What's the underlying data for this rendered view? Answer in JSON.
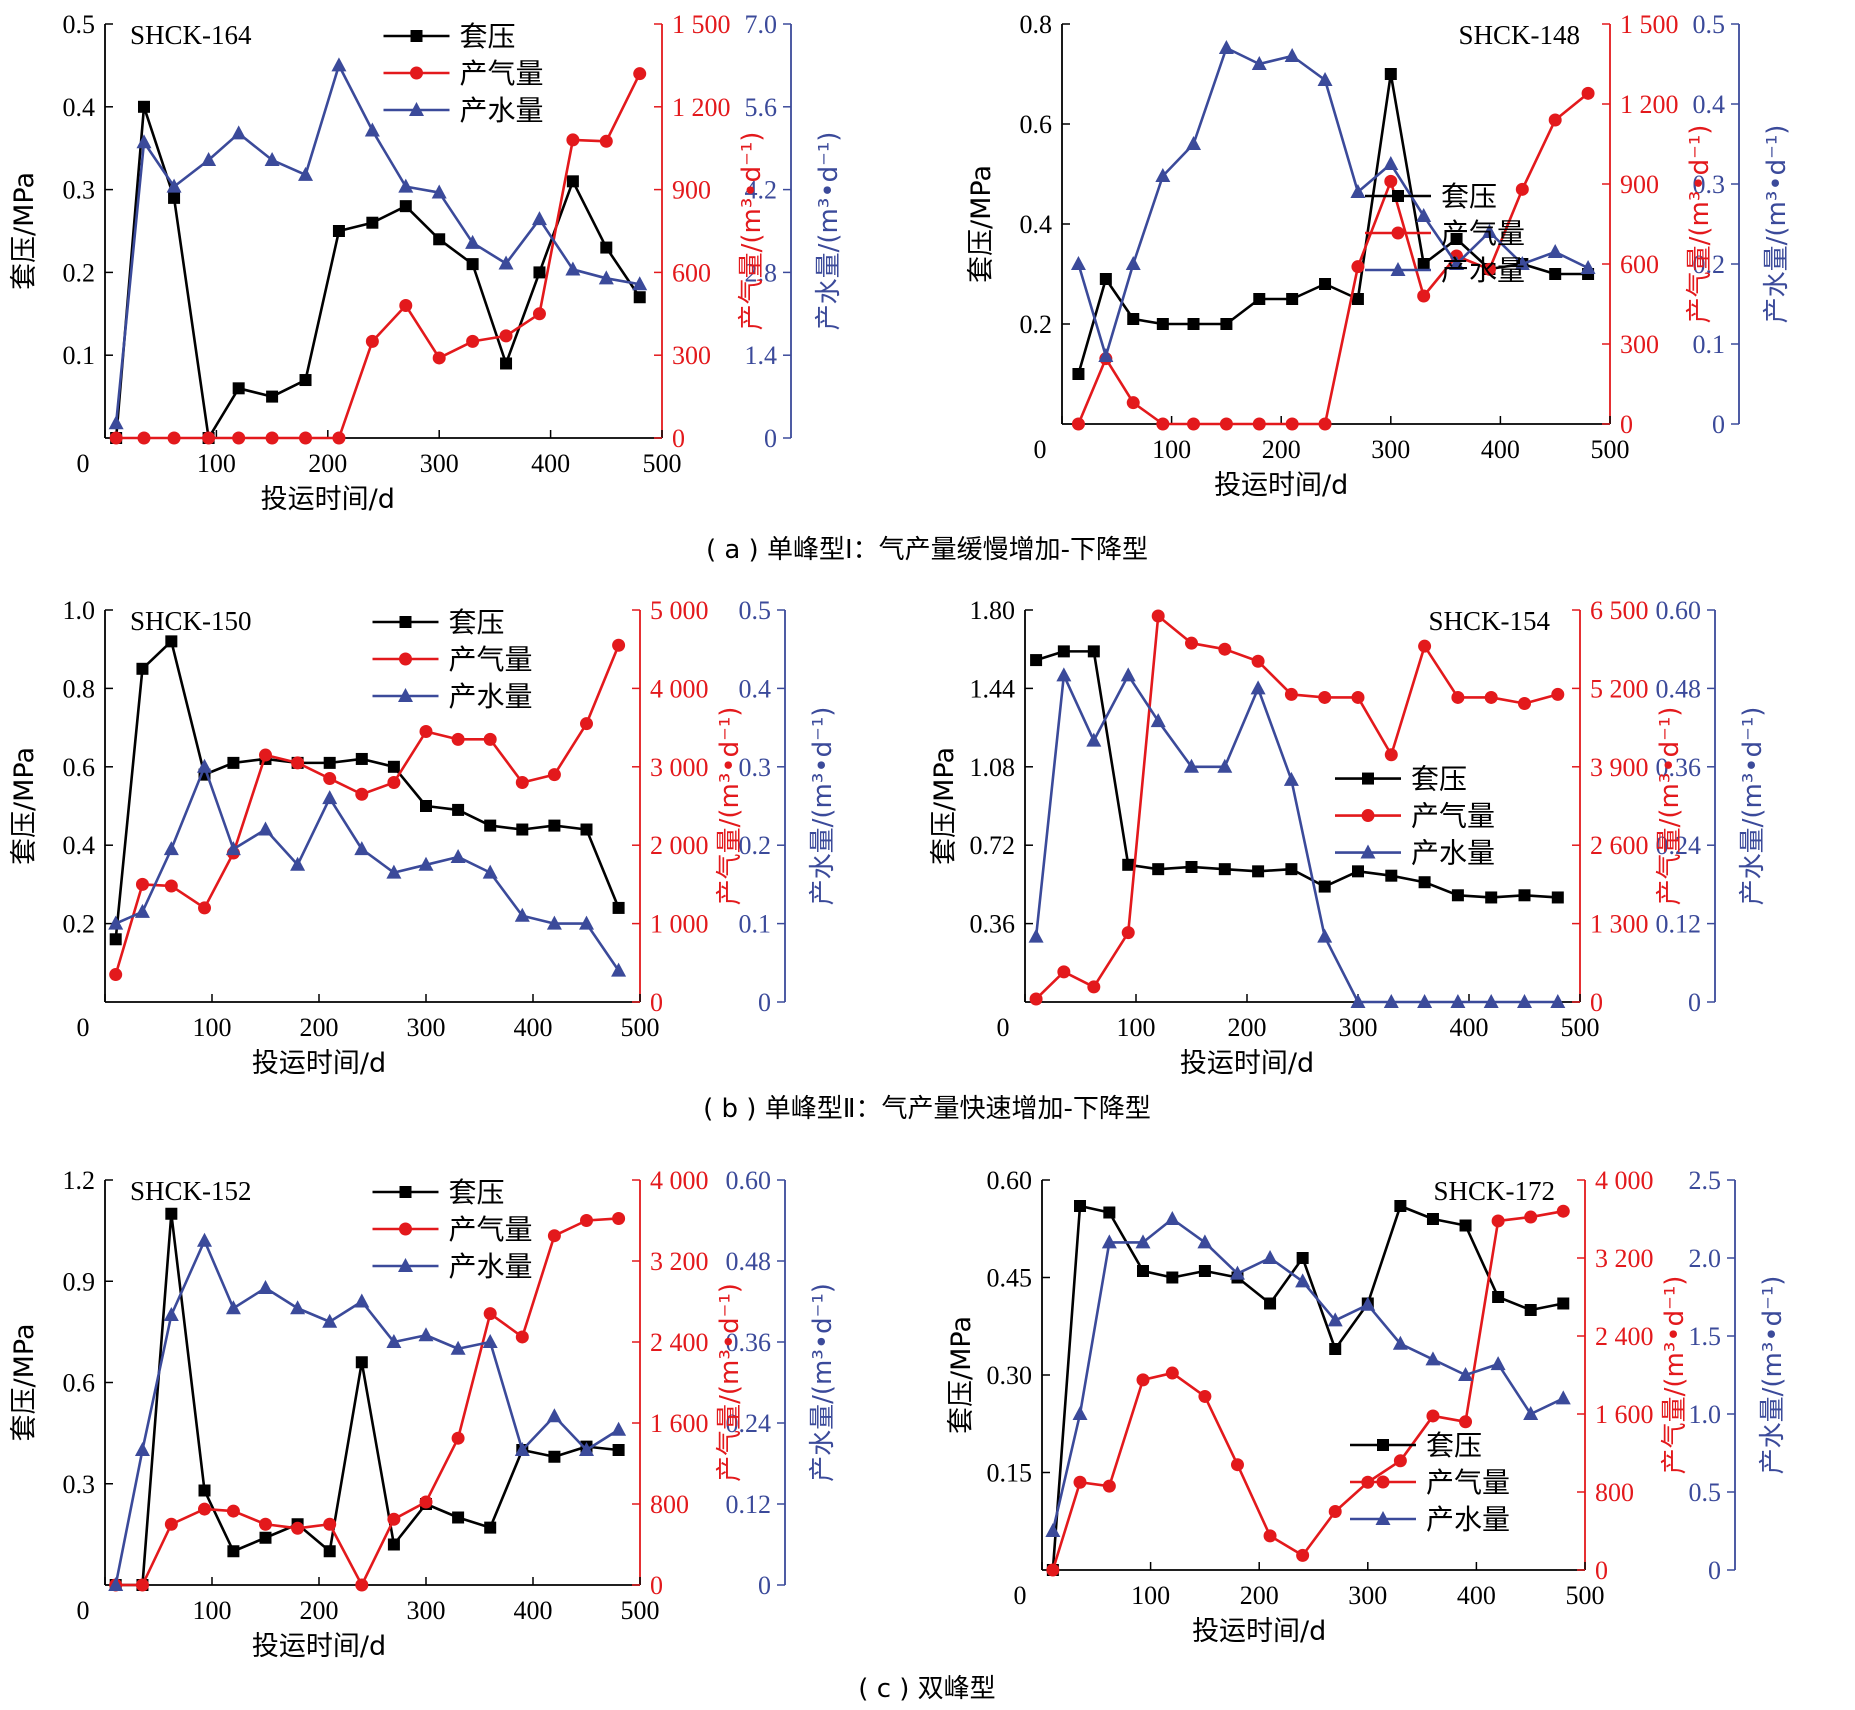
{
  "captions": [
    "( a ) 单峰型Ⅰ：气产量缓慢增加-下降型",
    "( b ) 单峰型Ⅱ：气产量快速增加-下降型",
    "( c ) 双峰型"
  ],
  "legend_labels": [
    "套压",
    "产气量",
    "产水量"
  ],
  "colors": {
    "pressure": "#000000",
    "gas": "#e3191c",
    "water": "#3b4a9a"
  },
  "chart_data": [
    {
      "type": "line",
      "title": "SHCK-164",
      "xlabel": "投运时间/d",
      "ylabel": "套压/MPa",
      "y2label": "产气量/(m³•d⁻¹)",
      "y3label": "产水量/(m³•d⁻¹)",
      "xlim": [
        0,
        500
      ],
      "x_ticks": [
        "0",
        "100",
        "200",
        "300",
        "400",
        "500"
      ],
      "ylim": [
        0,
        0.5
      ],
      "y_ticks": [
        "0.1",
        "0.2",
        "0.3",
        "0.4",
        "0.5"
      ],
      "y2lim": [
        0,
        1500
      ],
      "y2_ticks": [
        "0",
        "300",
        "600",
        "900",
        "1 200",
        "1 500"
      ],
      "y3lim": [
        0,
        7.0
      ],
      "y3_ticks": [
        "0",
        "1.4",
        "2.8",
        "4.2",
        "5.6",
        "7.0"
      ],
      "legend": "top-center",
      "series": [
        {
          "name": "套压",
          "axis": "left",
          "marker": "square",
          "x": [
            10,
            35,
            62,
            93,
            120,
            150,
            180,
            210,
            240,
            270,
            300,
            330,
            360,
            390,
            420,
            450,
            480
          ],
          "y": [
            0,
            0.4,
            0.29,
            0,
            0.06,
            0.05,
            0.07,
            0.25,
            0.26,
            0.28,
            0.24,
            0.21,
            0.09,
            0.2,
            0.31,
            0.23,
            0.17
          ]
        },
        {
          "name": "产气量",
          "axis": "right1",
          "marker": "circle",
          "x": [
            10,
            35,
            62,
            93,
            120,
            150,
            180,
            210,
            240,
            270,
            300,
            330,
            360,
            390,
            420,
            450,
            480
          ],
          "y": [
            0,
            0,
            0,
            0,
            0,
            0,
            0,
            0,
            350,
            480,
            290,
            350,
            370,
            450,
            1080,
            1075,
            1320
          ]
        },
        {
          "name": "产水量",
          "axis": "right2",
          "marker": "triangle",
          "x": [
            10,
            35,
            62,
            93,
            120,
            150,
            180,
            210,
            240,
            270,
            300,
            330,
            360,
            390,
            420,
            450,
            480
          ],
          "y": [
            0.25,
            5.0,
            4.25,
            4.7,
            5.15,
            4.7,
            4.45,
            6.3,
            5.2,
            4.25,
            4.15,
            3.3,
            2.95,
            3.7,
            2.85,
            2.7,
            2.6
          ]
        }
      ]
    },
    {
      "type": "line",
      "title": "SHCK-148",
      "xlabel": "投运时间/d",
      "ylabel": "套压/MPa",
      "y2label": "产气量/(m³•d⁻¹)",
      "y3label": "产水量/(m³•d⁻¹)",
      "xlim": [
        0,
        500
      ],
      "x_ticks": [
        "0",
        "100",
        "200",
        "300",
        "400",
        "500"
      ],
      "ylim": [
        0,
        0.8
      ],
      "y_ticks": [
        "0.2",
        "0.4",
        "0.6",
        "0.8"
      ],
      "y2lim": [
        0,
        1500
      ],
      "y2_ticks": [
        "0",
        "300",
        "600",
        "900",
        "1 200",
        "1 500"
      ],
      "y3lim": [
        0,
        0.5
      ],
      "y3_ticks": [
        "0",
        "0.1",
        "0.2",
        "0.3",
        "0.4",
        "0.5"
      ],
      "legend": "center-right",
      "series": [
        {
          "name": "套压",
          "axis": "left",
          "marker": "square",
          "x": [
            15,
            40,
            65,
            92,
            120,
            150,
            180,
            210,
            240,
            270,
            300,
            330,
            360,
            390,
            420,
            450,
            480
          ],
          "y": [
            0.1,
            0.29,
            0.21,
            0.2,
            0.2,
            0.2,
            0.25,
            0.25,
            0.28,
            0.25,
            0.7,
            0.32,
            0.37,
            0.31,
            0.32,
            0.3,
            0.3
          ]
        },
        {
          "name": "产气量",
          "axis": "right1",
          "marker": "circle",
          "x": [
            15,
            40,
            65,
            92,
            120,
            150,
            180,
            210,
            240,
            270,
            300,
            330,
            360,
            390,
            420,
            450,
            480
          ],
          "y": [
            0,
            245,
            80,
            0,
            0,
            0,
            0,
            0,
            0,
            590,
            910,
            480,
            630,
            580,
            880,
            1140,
            1240
          ]
        },
        {
          "name": "产水量",
          "axis": "right2",
          "marker": "triangle",
          "x": [
            15,
            40,
            65,
            92,
            120,
            150,
            180,
            210,
            240,
            270,
            300,
            330,
            360,
            390,
            420,
            450,
            480
          ],
          "y": [
            0.2,
            0.085,
            0.2,
            0.31,
            0.35,
            0.47,
            0.45,
            0.46,
            0.43,
            0.29,
            0.325,
            0.26,
            0.2,
            0.24,
            0.2,
            0.215,
            0.195
          ]
        }
      ]
    },
    {
      "type": "line",
      "title": "SHCK-150",
      "xlabel": "投运时间/d",
      "ylabel": "套压/MPa",
      "y2label": "产气量/(m³•d⁻¹)",
      "y3label": "产水量/(m³•d⁻¹)",
      "xlim": [
        0,
        500
      ],
      "x_ticks": [
        "0",
        "100",
        "200",
        "300",
        "400",
        "500"
      ],
      "ylim": [
        0,
        1.0
      ],
      "y_ticks": [
        "0.2",
        "0.4",
        "0.6",
        "0.8",
        "1.0"
      ],
      "y2lim": [
        0,
        5000
      ],
      "y2_ticks": [
        "0",
        "1 000",
        "2 000",
        "3 000",
        "4 000",
        "5 000"
      ],
      "y3lim": [
        0,
        0.5
      ],
      "y3_ticks": [
        "0",
        "0.1",
        "0.2",
        "0.3",
        "0.4",
        "0.5"
      ],
      "legend": "top-center",
      "series": [
        {
          "name": "套压",
          "axis": "left",
          "marker": "square",
          "x": [
            10,
            35,
            62,
            93,
            120,
            150,
            180,
            210,
            240,
            270,
            300,
            330,
            360,
            390,
            420,
            450,
            480
          ],
          "y": [
            0.16,
            0.85,
            0.92,
            0.58,
            0.61,
            0.62,
            0.61,
            0.61,
            0.62,
            0.6,
            0.5,
            0.49,
            0.45,
            0.44,
            0.45,
            0.44,
            0.24
          ]
        },
        {
          "name": "产气量",
          "axis": "right1",
          "marker": "circle",
          "x": [
            10,
            35,
            62,
            93,
            120,
            150,
            180,
            210,
            240,
            270,
            300,
            330,
            360,
            390,
            420,
            450,
            480
          ],
          "y": [
            350,
            1500,
            1480,
            1200,
            1900,
            3150,
            3050,
            2850,
            2650,
            2800,
            3450,
            3350,
            3350,
            2800,
            2900,
            3550,
            4550
          ]
        },
        {
          "name": "产水量",
          "axis": "right2",
          "marker": "triangle",
          "x": [
            10,
            35,
            62,
            93,
            120,
            150,
            180,
            210,
            240,
            270,
            300,
            330,
            360,
            390,
            420,
            450,
            480
          ],
          "y": [
            0.1,
            0.115,
            0.195,
            0.3,
            0.195,
            0.22,
            0.175,
            0.26,
            0.195,
            0.165,
            0.175,
            0.185,
            0.165,
            0.11,
            0.1,
            0.1,
            0.04
          ]
        }
      ]
    },
    {
      "type": "line",
      "title": "SHCK-154",
      "xlabel": "投运时间/d",
      "ylabel": "套压/MPa",
      "y2label": "产气量/(m³•d⁻¹)",
      "y3label": "产水量/(m³•d⁻¹)",
      "xlim": [
        0,
        500
      ],
      "x_ticks": [
        "0",
        "100",
        "200",
        "300",
        "400",
        "500"
      ],
      "ylim": [
        0,
        1.8
      ],
      "y_ticks": [
        "0.36",
        "0.72",
        "1.08",
        "1.44",
        "1.80"
      ],
      "y2lim": [
        0,
        6500
      ],
      "y2_ticks": [
        "0",
        "1 300",
        "2 600",
        "3 900",
        "5 200",
        "6 500"
      ],
      "y3lim": [
        0,
        0.6
      ],
      "y3_ticks": [
        "0",
        "0.12",
        "0.24",
        "0.36",
        "0.48",
        "0.60"
      ],
      "legend": "center-right",
      "series": [
        {
          "name": "套压",
          "axis": "left",
          "marker": "square",
          "x": [
            10,
            35,
            62,
            93,
            120,
            150,
            180,
            210,
            240,
            270,
            300,
            330,
            360,
            390,
            420,
            450,
            480
          ],
          "y": [
            1.57,
            1.61,
            1.61,
            0.63,
            0.61,
            0.62,
            0.61,
            0.6,
            0.61,
            0.53,
            0.6,
            0.58,
            0.55,
            0.49,
            0.48,
            0.49,
            0.48
          ]
        },
        {
          "name": "产气量",
          "axis": "right1",
          "marker": "circle",
          "x": [
            10,
            35,
            62,
            93,
            120,
            150,
            180,
            210,
            240,
            270,
            300,
            330,
            360,
            390,
            420,
            450,
            480
          ],
          "y": [
            50,
            500,
            250,
            1150,
            6400,
            5950,
            5850,
            5650,
            5100,
            5050,
            5050,
            4100,
            5900,
            5050,
            5050,
            4950,
            5100
          ]
        },
        {
          "name": "产水量",
          "axis": "right2",
          "marker": "triangle",
          "x": [
            10,
            35,
            62,
            93,
            120,
            150,
            180,
            210,
            240,
            270,
            300,
            330,
            360,
            390,
            420,
            450,
            480
          ],
          "y": [
            0.1,
            0.5,
            0.4,
            0.5,
            0.43,
            0.36,
            0.36,
            0.48,
            0.34,
            0.1,
            0,
            0,
            0,
            0,
            0,
            0,
            0
          ]
        }
      ]
    },
    {
      "type": "line",
      "title": "SHCK-152",
      "xlabel": "投运时间/d",
      "ylabel": "套压/MPa",
      "y2label": "产气量/(m³•d⁻¹)",
      "y3label": "产水量/(m³•d⁻¹)",
      "xlim": [
        0,
        500
      ],
      "x_ticks": [
        "0",
        "100",
        "200",
        "300",
        "400",
        "500"
      ],
      "ylim": [
        0,
        1.2
      ],
      "y_ticks": [
        "0.3",
        "0.6",
        "0.9",
        "1.2"
      ],
      "y2lim": [
        0,
        4000
      ],
      "y2_ticks": [
        "0",
        "800",
        "1 600",
        "2 400",
        "3 200",
        "4 000"
      ],
      "y3lim": [
        0,
        0.6
      ],
      "y3_ticks": [
        "0",
        "0.12",
        "0.24",
        "0.36",
        "0.48",
        "0.60"
      ],
      "legend": "top-center",
      "series": [
        {
          "name": "套压",
          "axis": "left",
          "marker": "square",
          "x": [
            10,
            35,
            62,
            93,
            120,
            150,
            180,
            210,
            240,
            270,
            300,
            330,
            360,
            390,
            420,
            450,
            480
          ],
          "y": [
            0,
            0,
            1.1,
            0.28,
            0.1,
            0.14,
            0.18,
            0.1,
            0.66,
            0.12,
            0.24,
            0.2,
            0.17,
            0.4,
            0.38,
            0.41,
            0.4
          ]
        },
        {
          "name": "产气量",
          "axis": "right1",
          "marker": "circle",
          "x": [
            10,
            35,
            62,
            93,
            120,
            150,
            180,
            210,
            240,
            270,
            300,
            330,
            360,
            390,
            420,
            450,
            480
          ],
          "y": [
            0,
            0,
            600,
            750,
            730,
            600,
            560,
            600,
            0,
            650,
            820,
            1450,
            2680,
            2450,
            3450,
            3600,
            3620
          ]
        },
        {
          "name": "产水量",
          "axis": "right2",
          "marker": "triangle",
          "x": [
            10,
            35,
            62,
            93,
            120,
            150,
            180,
            210,
            240,
            270,
            300,
            330,
            360,
            390,
            420,
            450,
            480
          ],
          "y": [
            0,
            0.2,
            0.4,
            0.51,
            0.41,
            0.44,
            0.41,
            0.39,
            0.42,
            0.36,
            0.37,
            0.35,
            0.36,
            0.2,
            0.25,
            0.2,
            0.23
          ]
        }
      ]
    },
    {
      "type": "line",
      "title": "SHCK-172",
      "xlabel": "投运时间/d",
      "ylabel": "套压/MPa",
      "y2label": "产气量/(m³•d⁻¹)",
      "y3label": "产水量/(m³•d⁻¹)",
      "xlim": [
        0,
        500
      ],
      "x_ticks": [
        "0",
        "100",
        "200",
        "300",
        "400",
        "500"
      ],
      "ylim": [
        0,
        0.6
      ],
      "y_ticks": [
        "0.15",
        "0.30",
        "0.45",
        "0.60"
      ],
      "y2lim": [
        0,
        4000
      ],
      "y2_ticks": [
        "0",
        "800",
        "1 600",
        "2 400",
        "3 200",
        "4 000"
      ],
      "y3lim": [
        0,
        2.5
      ],
      "y3_ticks": [
        "0",
        "0.5",
        "1.0",
        "1.5",
        "2.0",
        "2.5"
      ],
      "legend": "bottom-right",
      "series": [
        {
          "name": "套压",
          "axis": "left",
          "marker": "square",
          "x": [
            10,
            35,
            62,
            93,
            120,
            150,
            180,
            210,
            240,
            270,
            300,
            330,
            360,
            390,
            420,
            450,
            480
          ],
          "y": [
            0,
            0.56,
            0.55,
            0.46,
            0.45,
            0.46,
            0.45,
            0.41,
            0.48,
            0.34,
            0.41,
            0.56,
            0.54,
            0.53,
            0.42,
            0.4,
            0.41
          ]
        },
        {
          "name": "产气量",
          "axis": "right1",
          "marker": "circle",
          "x": [
            10,
            35,
            62,
            93,
            120,
            150,
            180,
            210,
            240,
            270,
            300,
            330,
            360,
            390,
            420,
            450,
            480
          ],
          "y": [
            0,
            900,
            860,
            1950,
            2020,
            1780,
            1080,
            350,
            150,
            600,
            900,
            1120,
            1580,
            1520,
            3580,
            3620,
            3680
          ]
        },
        {
          "name": "产水量",
          "axis": "right2",
          "marker": "triangle",
          "x": [
            10,
            35,
            62,
            93,
            120,
            150,
            180,
            210,
            240,
            270,
            300,
            330,
            360,
            390,
            420,
            450,
            480
          ],
          "y": [
            0.25,
            1.0,
            2.1,
            2.1,
            2.25,
            2.1,
            1.9,
            2.0,
            1.85,
            1.6,
            1.7,
            1.45,
            1.35,
            1.25,
            1.32,
            1.0,
            1.1
          ]
        }
      ]
    }
  ]
}
